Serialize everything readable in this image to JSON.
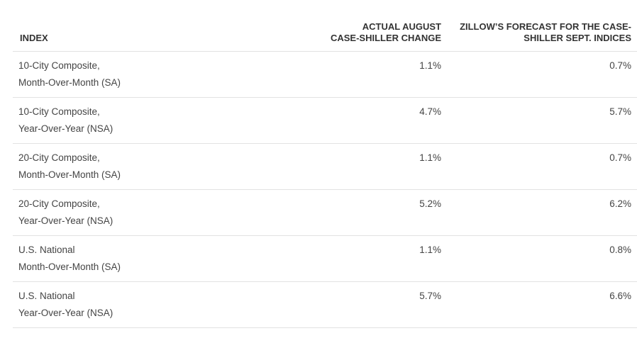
{
  "table": {
    "headers": {
      "index": "INDEX",
      "actual_line1": "ACTUAL AUGUST",
      "actual_line2": "CASE-SHILLER CHANGE",
      "forecast_line1": "ZILLOW’S FORECAST FOR THE CASE-",
      "forecast_line2": "SHILLER SEPT. INDICES"
    },
    "rows": [
      {
        "name1": "10-City Composite,",
        "name2": "Month-Over-Month (SA)",
        "actual": "1.1%",
        "forecast": "0.7%"
      },
      {
        "name1": "10-City Composite,",
        "name2": "Year-Over-Year (NSA)",
        "actual": "4.7%",
        "forecast": "5.7%"
      },
      {
        "name1": "20-City Composite,",
        "name2": "Month-Over-Month (SA)",
        "actual": "1.1%",
        "forecast": "0.7%"
      },
      {
        "name1": "20-City Composite,",
        "name2": "Year-Over-Year (NSA)",
        "actual": "5.2%",
        "forecast": "6.2%"
      },
      {
        "name1": "U.S. National",
        "name2": "Month-Over-Month (SA)",
        "actual": "1.1%",
        "forecast": "0.8%"
      },
      {
        "name1": "U.S. National",
        "name2": "Year-Over-Year (NSA)",
        "actual": "5.7%",
        "forecast": "6.6%"
      }
    ]
  }
}
